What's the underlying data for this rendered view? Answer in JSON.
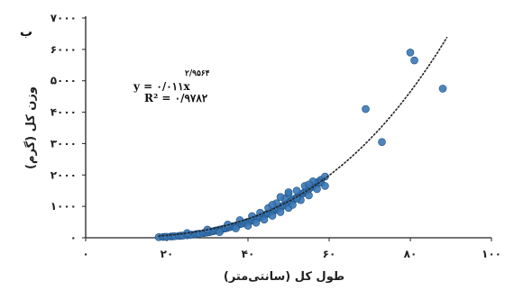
{
  "chart_data": {
    "type": "scatter",
    "panel_label": "ب",
    "title": "",
    "xlabel": "طول کل (سانتی‌متر)",
    "ylabel": "وزن کل (گرم)",
    "xlim": [
      0,
      100
    ],
    "ylim": [
      0,
      7000
    ],
    "x_ticks": [
      0,
      20,
      40,
      60,
      80,
      100
    ],
    "x_tick_labels": [
      "۰",
      "۲۰",
      "۴۰",
      "۶۰",
      "۸۰",
      "۱۰۰"
    ],
    "y_ticks": [
      0,
      1000,
      2000,
      3000,
      4000,
      5000,
      6000,
      7000
    ],
    "y_tick_labels": [
      "۰",
      "۱۰۰۰",
      "۲۰۰۰",
      "۳۰۰۰",
      "۴۰۰۰",
      "۵۰۰۰",
      "۶۰۰۰",
      "۷۰۰۰"
    ],
    "grid": false,
    "legend": "none",
    "marker_color": "#3a78b5",
    "marker_edge_color": "#1f4f82",
    "trendline": {
      "type": "power",
      "coefficient": 0.011,
      "exponent": 2.9564,
      "x_range": [
        18,
        89
      ],
      "color": "#222222",
      "style": "dotted",
      "equation_text": "y = ۰/۰۱۱x",
      "exponent_text": "۲/۹۵۶۴",
      "r2_text": "R² = ۰/۹۷۸۲"
    },
    "points": [
      {
        "x": 18,
        "y": 20
      },
      {
        "x": 19,
        "y": 25
      },
      {
        "x": 19.5,
        "y": 30
      },
      {
        "x": 20,
        "y": 30
      },
      {
        "x": 21,
        "y": 40
      },
      {
        "x": 21.5,
        "y": 45
      },
      {
        "x": 22,
        "y": 50
      },
      {
        "x": 23,
        "y": 60
      },
      {
        "x": 23.5,
        "y": 65
      },
      {
        "x": 24,
        "y": 70
      },
      {
        "x": 25,
        "y": 80
      },
      {
        "x": 25.5,
        "y": 90
      },
      {
        "x": 26,
        "y": 100
      },
      {
        "x": 27,
        "y": 110
      },
      {
        "x": 27.5,
        "y": 120
      },
      {
        "x": 28,
        "y": 130
      },
      {
        "x": 29,
        "y": 150
      },
      {
        "x": 29.5,
        "y": 160
      },
      {
        "x": 30,
        "y": 170
      },
      {
        "x": 30.5,
        "y": 180
      },
      {
        "x": 31,
        "y": 200
      },
      {
        "x": 31.5,
        "y": 210
      },
      {
        "x": 32,
        "y": 230
      },
      {
        "x": 32.5,
        "y": 240
      },
      {
        "x": 33,
        "y": 260
      },
      {
        "x": 33.5,
        "y": 270
      },
      {
        "x": 34,
        "y": 290
      },
      {
        "x": 34.5,
        "y": 300
      },
      {
        "x": 35,
        "y": 320
      },
      {
        "x": 35.5,
        "y": 340
      },
      {
        "x": 36,
        "y": 360
      },
      {
        "x": 36.5,
        "y": 370
      },
      {
        "x": 37,
        "y": 390
      },
      {
        "x": 37.5,
        "y": 410
      },
      {
        "x": 38,
        "y": 430
      },
      {
        "x": 38.5,
        "y": 450
      },
      {
        "x": 39,
        "y": 470
      },
      {
        "x": 39.5,
        "y": 490
      },
      {
        "x": 40,
        "y": 510
      },
      {
        "x": 40.5,
        "y": 530
      },
      {
        "x": 41,
        "y": 560
      },
      {
        "x": 41.5,
        "y": 580
      },
      {
        "x": 42,
        "y": 610
      },
      {
        "x": 42.5,
        "y": 630
      },
      {
        "x": 43,
        "y": 660
      },
      {
        "x": 43.5,
        "y": 690
      },
      {
        "x": 44,
        "y": 720
      },
      {
        "x": 44.5,
        "y": 750
      },
      {
        "x": 45,
        "y": 780
      },
      {
        "x": 45.5,
        "y": 810
      },
      {
        "x": 46,
        "y": 840
      },
      {
        "x": 46.5,
        "y": 870
      },
      {
        "x": 47,
        "y": 910
      },
      {
        "x": 47.5,
        "y": 940
      },
      {
        "x": 48,
        "y": 980
      },
      {
        "x": 48.5,
        "y": 1010
      },
      {
        "x": 49,
        "y": 1050
      },
      {
        "x": 49.5,
        "y": 1090
      },
      {
        "x": 50,
        "y": 1130
      },
      {
        "x": 50.5,
        "y": 1160
      },
      {
        "x": 51,
        "y": 1200
      },
      {
        "x": 51.5,
        "y": 1240
      },
      {
        "x": 52,
        "y": 1280
      },
      {
        "x": 52.5,
        "y": 1320
      },
      {
        "x": 53,
        "y": 1370
      },
      {
        "x": 53.5,
        "y": 1410
      },
      {
        "x": 54,
        "y": 1460
      },
      {
        "x": 54.5,
        "y": 1500
      },
      {
        "x": 55,
        "y": 1550
      },
      {
        "x": 55.5,
        "y": 1600
      },
      {
        "x": 56,
        "y": 1640
      },
      {
        "x": 56.5,
        "y": 1690
      },
      {
        "x": 57,
        "y": 1750
      },
      {
        "x": 57.5,
        "y": 1800
      },
      {
        "x": 58,
        "y": 1850
      },
      {
        "x": 59,
        "y": 1950
      },
      {
        "x": 25,
        "y": 150
      },
      {
        "x": 30,
        "y": 260
      },
      {
        "x": 33,
        "y": 180
      },
      {
        "x": 35,
        "y": 420
      },
      {
        "x": 37,
        "y": 300
      },
      {
        "x": 38,
        "y": 560
      },
      {
        "x": 40,
        "y": 380
      },
      {
        "x": 41,
        "y": 690
      },
      {
        "x": 42,
        "y": 480
      },
      {
        "x": 43,
        "y": 800
      },
      {
        "x": 44,
        "y": 580
      },
      {
        "x": 45,
        "y": 950
      },
      {
        "x": 46,
        "y": 700
      },
      {
        "x": 47,
        "y": 1100
      },
      {
        "x": 48,
        "y": 820
      },
      {
        "x": 49,
        "y": 1250
      },
      {
        "x": 50,
        "y": 950
      },
      {
        "x": 50,
        "y": 1400
      },
      {
        "x": 51,
        "y": 1050
      },
      {
        "x": 52,
        "y": 1500
      },
      {
        "x": 53,
        "y": 1200
      },
      {
        "x": 54,
        "y": 1650
      },
      {
        "x": 55,
        "y": 1350
      },
      {
        "x": 56,
        "y": 1800
      },
      {
        "x": 57,
        "y": 1550
      },
      {
        "x": 58,
        "y": 1750
      },
      {
        "x": 59,
        "y": 1650
      },
      {
        "x": 50,
        "y": 1450
      },
      {
        "x": 46,
        "y": 1050
      },
      {
        "x": 48,
        "y": 1300
      },
      {
        "x": 52,
        "y": 1250
      },
      {
        "x": 55,
        "y": 1700
      },
      {
        "x": 69,
        "y": 4100
      },
      {
        "x": 73,
        "y": 3050
      },
      {
        "x": 80,
        "y": 5900
      },
      {
        "x": 81,
        "y": 5650
      },
      {
        "x": 88,
        "y": 4750
      }
    ]
  }
}
